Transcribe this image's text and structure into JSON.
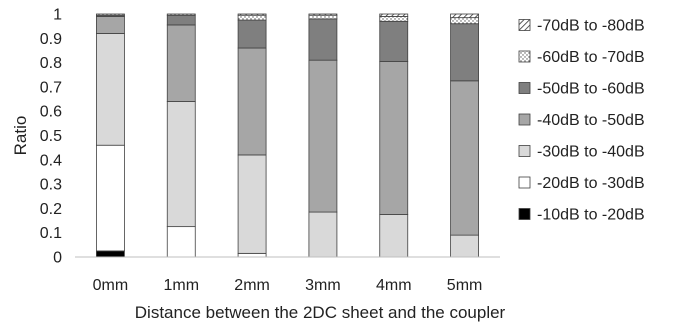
{
  "chart_data": {
    "type": "bar",
    "stacked": true,
    "title": "",
    "xlabel": "Distance between the 2DC sheet and  the coupler",
    "ylabel": "Ratio",
    "ylim": [
      0,
      1
    ],
    "yticks": [
      "0",
      "0.1",
      "0.2",
      "0.3",
      "0.4",
      "0.5",
      "0.6",
      "0.7",
      "0.8",
      "0.9",
      "1"
    ],
    "grid": false,
    "legend_position": "right",
    "categories": [
      "0mm",
      "1mm",
      "2mm",
      "3mm",
      "4mm",
      "5mm"
    ],
    "series": [
      {
        "name": "-10dB to -20dB",
        "color": "#000000",
        "pattern": "solid",
        "values": [
          0.025,
          0,
          0,
          0,
          0,
          0
        ]
      },
      {
        "name": "-20dB to -30dB",
        "color": "#ffffff",
        "pattern": "solid",
        "values": [
          0.435,
          0.125,
          0.015,
          0,
          0,
          0
        ]
      },
      {
        "name": "-30dB to -40dB",
        "color": "#d9d9d9",
        "pattern": "solid",
        "values": [
          0.46,
          0.515,
          0.405,
          0.185,
          0.175,
          0.09
        ]
      },
      {
        "name": "-40dB to -50dB",
        "color": "#a6a6a6",
        "pattern": "solid",
        "values": [
          0.07,
          0.315,
          0.44,
          0.625,
          0.63,
          0.635
        ]
      },
      {
        "name": "-50dB to -60dB",
        "color": "#7f7f7f",
        "pattern": "solid",
        "values": [
          0.005,
          0.04,
          0.115,
          0.17,
          0.165,
          0.235
        ]
      },
      {
        "name": "-60dB to -70dB",
        "color": "#ffffff",
        "pattern": "dots",
        "values": [
          0.005,
          0.005,
          0.02,
          0.015,
          0.02,
          0.025
        ]
      },
      {
        "name": "-70dB to -80dB",
        "color": "#ffffff",
        "pattern": "hatch",
        "values": [
          0,
          0,
          0.005,
          0.005,
          0.01,
          0.015
        ]
      }
    ]
  }
}
